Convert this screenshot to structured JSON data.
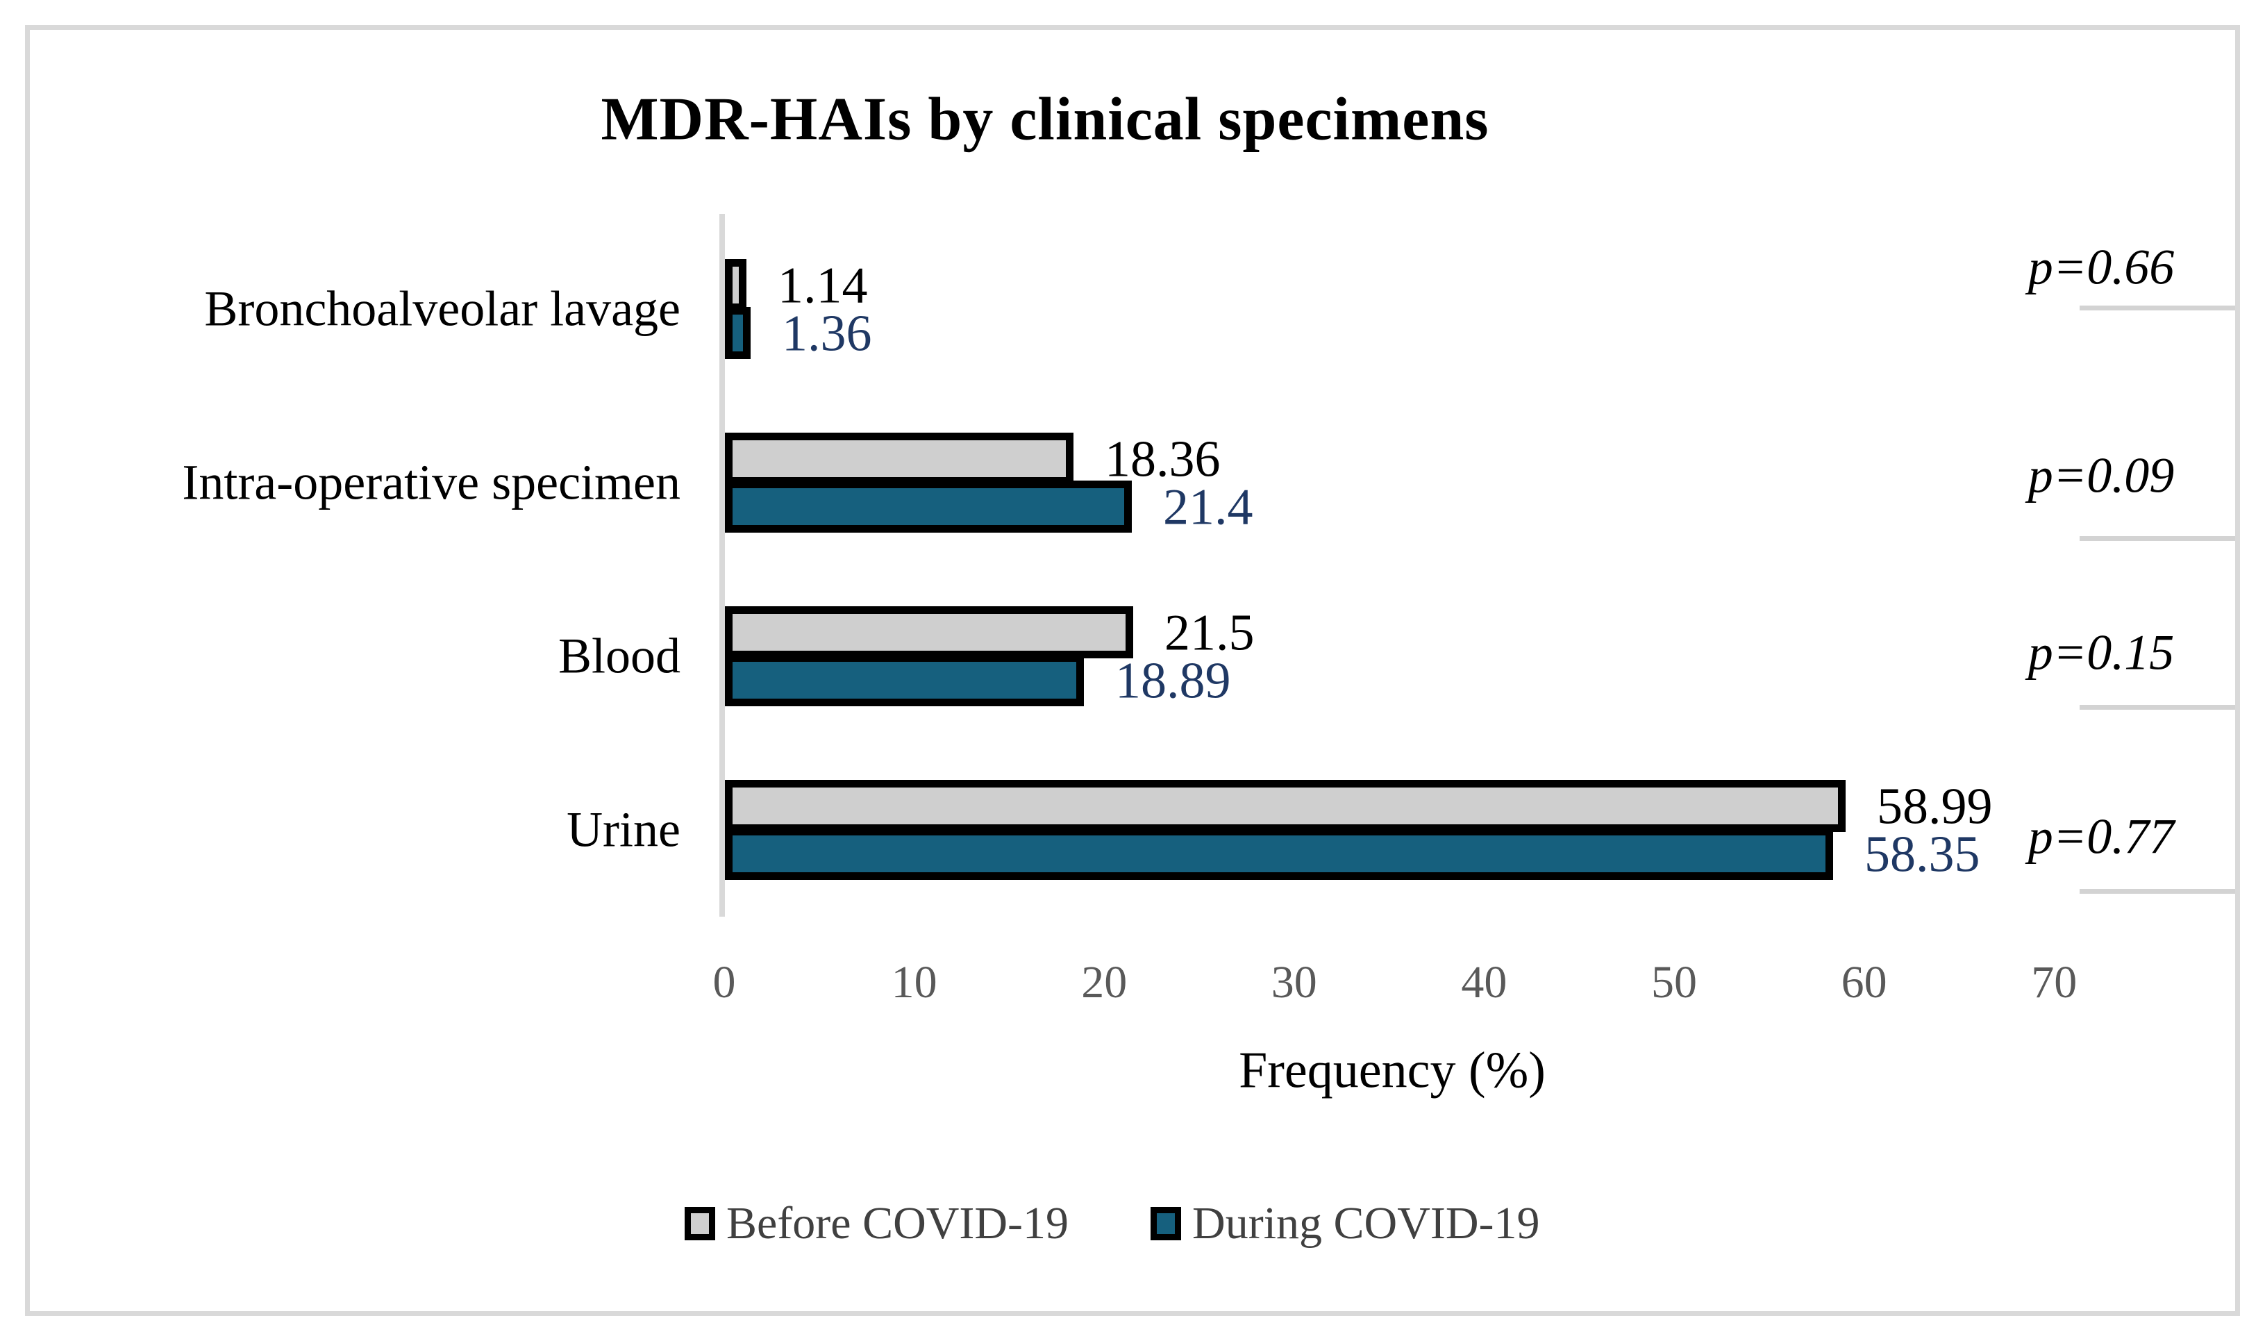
{
  "title": "MDR-HAIs by clinical specimens",
  "chart_data": {
    "type": "bar",
    "orientation": "horizontal",
    "title": "MDR-HAIs by clinical specimens",
    "categories": [
      "Bronchoalveolar lavage",
      "Intra-operative specimen",
      "Blood",
      "Urine"
    ],
    "series": [
      {
        "name": "Before COVID-19",
        "color": "#cfcfcf",
        "values": [
          1.14,
          18.36,
          21.5,
          58.99
        ],
        "labels": [
          "1.14",
          "18.36",
          "21.5",
          "58.99"
        ]
      },
      {
        "name": "During COVID-19",
        "color": "#16607e",
        "values": [
          1.36,
          21.4,
          18.89,
          58.35
        ],
        "labels": [
          "1.36",
          "21.4",
          "18.89",
          "58.35"
        ]
      }
    ],
    "p_values": [
      "p=0.66",
      "p=0.09",
      "p=0.15",
      "p=0.77"
    ],
    "xlabel": "Frequency (%)",
    "x_ticks": [
      0,
      10,
      20,
      30,
      40,
      50,
      60,
      70
    ],
    "x_tick_labels": [
      "0",
      "10",
      "20",
      "30",
      "40",
      "50",
      "60",
      "70"
    ],
    "xlim": [
      0,
      79.5
    ],
    "grid": false,
    "legend_position": "bottom",
    "value_label_color_during": "#1f3864",
    "bar_border_color": "#000000"
  },
  "legend": {
    "items": [
      {
        "label": "Before COVID-19",
        "color": "#cfcfcf"
      },
      {
        "label": "During COVID-19",
        "color": "#16607e"
      }
    ]
  },
  "colors": {
    "bar_before": "#cfcfcf",
    "bar_during": "#16607e",
    "bar_border": "#000000",
    "during_value_text": "#1f3864",
    "axis_line": "#d9d9d9",
    "frame_border": "#d9d9d9",
    "tick_text": "#595959",
    "legend_text": "#404040"
  }
}
